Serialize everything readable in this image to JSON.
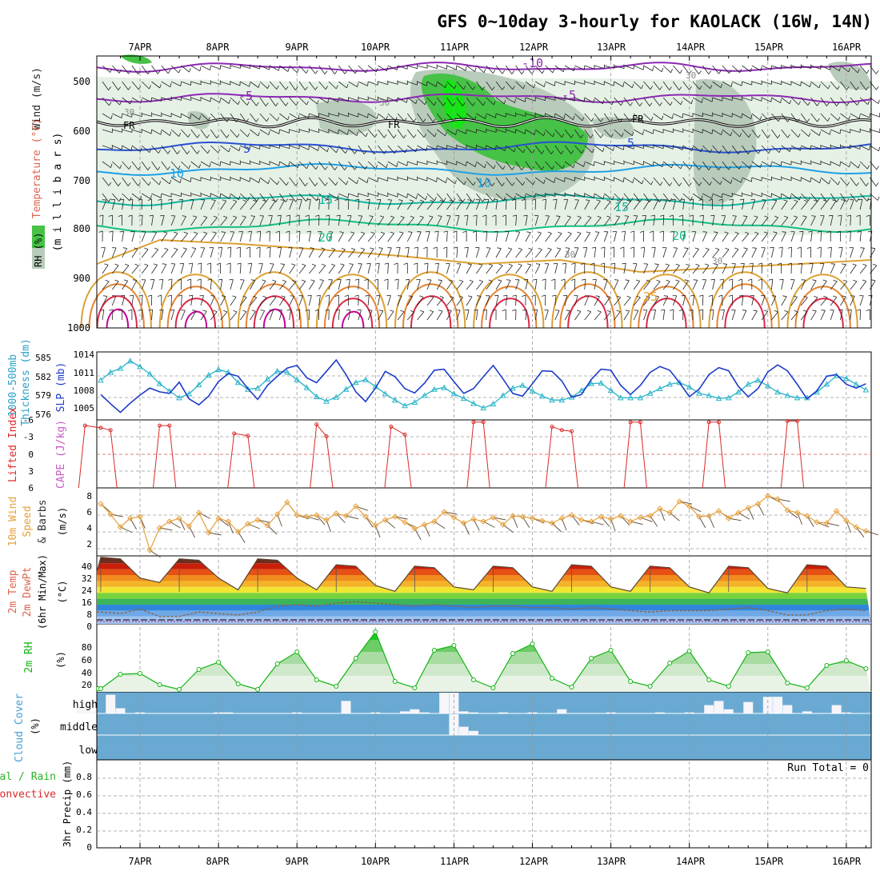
{
  "title": "GFS 0~10day 3-hourly for KAOLACK (16W, 14N)",
  "dates": [
    "7APR",
    "8APR",
    "9APR",
    "10APR",
    "11APR",
    "12APR",
    "13APR",
    "14APR",
    "15APR",
    "16APR"
  ],
  "colors": {
    "frame": "#000000",
    "grid": "#9a9a9a",
    "rh_light": "#e6f1e6",
    "rh_mid": "#b9ccbb",
    "rh_green": "#46c246",
    "rh_bright": "#14e614",
    "temp_purple": "#8c28b4",
    "temp_blue": "#2850d2",
    "temp_cyan": "#1ea0e6",
    "temp_teal": "#14b4a0",
    "temp_green": "#14be82",
    "temp_gold": "#dca032",
    "temp_orange": "#e6822d",
    "temp_red": "#dc2846",
    "temp_magenta": "#c80096",
    "slp": "#1e3cc8",
    "thickness": "#28b4c8",
    "li": "#dc2828",
    "wind": "#e6a03c",
    "rh2m": "#14b414",
    "cloud_bg": "#69a9d2",
    "cloud_bar": "#f5f5fa",
    "precip": "#28b428"
  },
  "panels": {
    "upper": {
      "ylabel": "(m i l l i b a r s)",
      "legend_wind": "Wind (m/s)",
      "legend_temp": "Temperature (°C)",
      "legend_rh": "RH (%)",
      "levels": [
        "500",
        "600",
        "700",
        "800",
        "900",
        "1000"
      ],
      "contour_labels": [
        "-10",
        "-5",
        "-5",
        "FR",
        "FR",
        "FR",
        "5",
        "5",
        "10",
        "10",
        "15",
        "15",
        "20",
        "20",
        "25",
        "30",
        "30",
        "30",
        "30",
        "30"
      ]
    },
    "slp": {
      "ylabel_left": "1000-500mb",
      "ylabel_left2": "Thickness (dm)",
      "ylabel_right": "SLP (mb)",
      "left_ticks": [
        "585",
        "582",
        "579",
        "576"
      ],
      "right_ticks": [
        "1014",
        "1011",
        "1008",
        "1005"
      ]
    },
    "li": {
      "ylabel_li": "Lifted Index",
      "ylabel_cape": "CAPE (J/kg)",
      "ticks": [
        "-6",
        "-3",
        "0",
        "3",
        "6"
      ]
    },
    "wind10m": {
      "ylabel_a": "10m Wind",
      "ylabel_b": "Speed",
      "ylabel_c": "& Barbs",
      "unit": "(m/s)",
      "ticks": [
        "8",
        "6",
        "4",
        "2"
      ]
    },
    "temp2m": {
      "ylabel_a": "2m Temp",
      "ylabel_b": "2m DewPt",
      "ylabel_c": "(6hr Min/Max)",
      "unit": "(°C)",
      "ticks": [
        "40",
        "32",
        "24",
        "16",
        "8",
        "0"
      ]
    },
    "rh2m": {
      "ylabel": "2m RH",
      "unit": "(%)",
      "ticks": [
        "80",
        "60",
        "40",
        "20"
      ]
    },
    "cloud": {
      "ylabel": "Cloud Cover",
      "unit": "(%)",
      "levels": [
        "high",
        "middle",
        "low"
      ]
    },
    "precip": {
      "ylabel_a": "3hr Precip (mm)",
      "ylabel_b": "Total / Rain",
      "ylabel_c": "Convective",
      "run_total": "Run Total = 0",
      "ticks": [
        "0.8",
        "0.6",
        "0.4",
        "0.2",
        "0"
      ]
    }
  },
  "chart_data": [
    {
      "type": "line",
      "title": "1000-500mb Thickness (dm) and SLP (mb)",
      "x": [
        0.5,
        0.625,
        0.75,
        0.875,
        1,
        1.125,
        1.25,
        1.375,
        1.5,
        1.625,
        1.75,
        1.875,
        2,
        2.125,
        2.25,
        2.375,
        2.5,
        2.625,
        2.75,
        2.875,
        3,
        3.125,
        3.25,
        3.375,
        3.5,
        3.625,
        3.75,
        3.875,
        4,
        4.125,
        4.25,
        4.375,
        4.5,
        4.625,
        4.75,
        4.875,
        5,
        5.125,
        5.25,
        5.375,
        5.5,
        5.625,
        5.75,
        5.875,
        6,
        6.125,
        6.25,
        6.375,
        6.5,
        6.625,
        6.75,
        6.875,
        7,
        7.125,
        7.25,
        7.375,
        7.5,
        7.625,
        7.75,
        7.875,
        8,
        8.125,
        8.25,
        8.375,
        8.5,
        8.625,
        8.75,
        8.875,
        9,
        9.125,
        9.25,
        9.375,
        9.5,
        9.625,
        9.75,
        9.875,
        10,
        10.125,
        10.25
      ],
      "series": [
        {
          "name": "1000-500mb Thickness (dm)",
          "axis": "left",
          "values": [
            581.5,
            582.9,
            583.6,
            584.9,
            583.9,
            582.6,
            580.9,
            579.6,
            578.4,
            579.1,
            580.7,
            582.4,
            583.4,
            582.9,
            581.1,
            579.9,
            580.1,
            581.7,
            583.1,
            582.9,
            581.6,
            580.2,
            578.6,
            577.8,
            578.5,
            579.9,
            581.1,
            581.6,
            580.4,
            579.1,
            578.0,
            577.0,
            577.6,
            578.8,
            579.9,
            580.2,
            579.1,
            578.3,
            577.4,
            576.6,
            577.3,
            578.8,
            580.1,
            580.6,
            579.6,
            578.7,
            578.0,
            578.0,
            578.5,
            579.7,
            580.9,
            581.0,
            579.7,
            578.4,
            578.4,
            578.4,
            579.2,
            580.0,
            580.8,
            581.1,
            580.3,
            579.2,
            578.8,
            578.3,
            578.4,
            579.4,
            580.8,
            581.5,
            580.5,
            579.4,
            578.8,
            578.4,
            578.4,
            579.4,
            580.8,
            582.3,
            581.8,
            580.8,
            579.8
          ]
        },
        {
          "name": "SLP (mb)",
          "axis": "right",
          "values": [
            1006.9,
            1005.2,
            1003.6,
            1005.3,
            1006.8,
            1008.1,
            1007.4,
            1007.1,
            1009.2,
            1006.1,
            1005.0,
            1006.6,
            1009.3,
            1010.8,
            1010.3,
            1008.0,
            1006.0,
            1008.6,
            1010.3,
            1011.8,
            1012.3,
            1010.0,
            1009.1,
            1011.2,
            1013.3,
            1010.6,
            1007.4,
            1005.6,
            1008.1,
            1011.2,
            1010.2,
            1008.0,
            1007.2,
            1009.0,
            1011.4,
            1011.6,
            1009.3,
            1007.1,
            1008.0,
            1010.2,
            1012.3,
            1009.8,
            1007.1,
            1006.6,
            1008.9,
            1011.3,
            1011.2,
            1009.4,
            1006.4,
            1006.9,
            1009.7,
            1011.6,
            1011.4,
            1008.6,
            1006.9,
            1008.6,
            1011.0,
            1012.1,
            1011.4,
            1009.1,
            1006.5,
            1007.9,
            1010.6,
            1011.9,
            1011.3,
            1008.4,
            1006.5,
            1008.0,
            1011.1,
            1012.4,
            1011.3,
            1008.8,
            1006.1,
            1007.6,
            1010.3,
            1010.6,
            1008.8,
            1008.1,
            1008.9
          ]
        }
      ],
      "ylim_left": [
        574.5,
        586.5
      ],
      "ylim_right": [
        1002.2,
        1014.8
      ]
    },
    {
      "type": "line",
      "title": "Lifted Index",
      "x": [
        0.3,
        0.5,
        0.625,
        1.25,
        1.375,
        2.2,
        2.375,
        3.25,
        3.375,
        4.2,
        4.375,
        5.25,
        5.375,
        6.25,
        6.375,
        6.5,
        7.25,
        7.375,
        8.25,
        8.375,
        9.25,
        9.375
      ],
      "series": [
        {
          "name": "Lifted Index",
          "values": [
            5.0,
            4.6,
            4.2,
            5.0,
            5.0,
            3.6,
            3.2,
            5.2,
            3.1,
            4.8,
            3.4,
            5.6,
            5.6,
            4.8,
            4.2,
            4.0,
            5.6,
            5.6,
            5.6,
            5.6,
            5.8,
            5.8
          ]
        }
      ],
      "ylim": [
        6,
        -6
      ]
    },
    {
      "type": "line",
      "title": "10m Wind Speed (m/s)",
      "x": [
        0.5,
        0.625,
        0.75,
        0.875,
        1,
        1.125,
        1.25,
        1.375,
        1.5,
        1.625,
        1.75,
        1.875,
        2,
        2.125,
        2.25,
        2.375,
        2.5,
        2.625,
        2.75,
        2.875,
        3,
        3.125,
        3.25,
        3.375,
        3.5,
        3.625,
        3.75,
        3.875,
        4,
        4.125,
        4.25,
        4.375,
        4.5,
        4.625,
        4.75,
        4.875,
        5,
        5.125,
        5.25,
        5.375,
        5.5,
        5.625,
        5.75,
        5.875,
        6,
        6.125,
        6.25,
        6.375,
        6.5,
        6.625,
        6.75,
        6.875,
        7,
        7.125,
        7.25,
        7.375,
        7.5,
        7.625,
        7.75,
        7.875,
        8,
        8.125,
        8.25,
        8.375,
        8.5,
        8.625,
        8.75,
        8.875,
        9,
        9.125,
        9.25,
        9.375,
        9.5,
        9.625,
        9.75,
        9.875,
        10,
        10.125,
        10.25
      ],
      "series": [
        {
          "name": "10m Wind Speed",
          "values": [
            7.0,
            5.7,
            4.1,
            5.2,
            5.4,
            1.2,
            4.0,
            4.8,
            5.2,
            4.2,
            5.9,
            3.4,
            5.2,
            4.8,
            3.5,
            4.5,
            5.0,
            4.3,
            5.7,
            7.2,
            5.6,
            5.4,
            5.6,
            5.0,
            5.8,
            5.5,
            6.7,
            5.4,
            4.3,
            5.0,
            5.4,
            4.7,
            3.9,
            4.4,
            4.8,
            6.0,
            5.3,
            4.6,
            5.1,
            4.8,
            5.3,
            4.4,
            5.5,
            5.4,
            5.2,
            4.9,
            4.6,
            5.2,
            5.6,
            5.0,
            4.8,
            5.4,
            5.1,
            5.5,
            4.8,
            5.3,
            5.5,
            6.4,
            5.9,
            7.3,
            6.7,
            5.4,
            5.5,
            6.1,
            5.2,
            5.9,
            6.5,
            7.0,
            8.0,
            7.6,
            6.2,
            5.9,
            5.5,
            4.7,
            4.6,
            6.1,
            4.9,
            4.1,
            3.6
          ]
        }
      ],
      "ylim": [
        0.5,
        9
      ]
    },
    {
      "type": "area",
      "title": "2m Temp / 2m DewPt (°C)",
      "x": [
        0.25,
        0.5,
        0.75,
        1,
        1.25,
        1.5,
        1.75,
        2,
        2.25,
        2.5,
        2.75,
        3,
        3.25,
        3.5,
        3.75,
        4,
        4.25,
        4.5,
        4.75,
        5,
        5.25,
        5.5,
        5.75,
        6,
        6.25,
        6.5,
        6.75,
        7,
        7.25,
        7.5,
        7.75,
        8,
        8.25,
        8.5,
        8.75,
        9,
        9.25,
        9.5,
        9.75,
        10,
        10.25
      ],
      "series": [
        {
          "name": "2m Temp",
          "values": [
            34,
            44,
            43,
            30,
            27,
            43,
            42,
            30,
            22,
            43,
            42,
            30,
            22,
            39,
            38,
            25,
            21,
            38,
            37,
            24,
            22,
            38,
            37,
            24,
            21,
            39,
            38,
            24,
            21,
            38,
            37,
            24,
            20,
            38,
            37,
            23,
            20,
            39,
            38,
            24,
            23
          ]
        },
        {
          "name": "2m DewPt",
          "values": [
            7,
            7,
            6,
            9,
            4,
            4,
            7,
            6,
            5,
            7,
            11,
            12,
            11,
            13,
            14,
            13,
            12,
            11,
            12,
            11,
            10,
            11,
            11,
            10,
            10,
            9,
            10,
            9,
            8,
            7,
            8,
            8,
            8,
            9,
            10,
            8,
            5,
            5,
            8,
            9,
            8
          ]
        }
      ],
      "ylim": [
        -1,
        45
      ]
    },
    {
      "type": "area",
      "title": "2m RH (%)",
      "x": [
        0.25,
        0.5,
        0.75,
        1,
        1.25,
        1.5,
        1.75,
        2,
        2.25,
        2.5,
        2.75,
        3,
        3.25,
        3.5,
        3.75,
        4,
        4.25,
        4.5,
        4.75,
        5,
        5.25,
        5.5,
        5.75,
        6,
        6.25,
        6.5,
        6.75,
        7,
        7.25,
        7.5,
        7.75,
        8,
        8.25,
        8.5,
        8.75,
        9,
        9.25,
        9.5,
        9.75,
        10,
        10.25
      ],
      "series": [
        {
          "name": "2m RH",
          "values": [
            9,
            9,
            27,
            28,
            14,
            8,
            33,
            42,
            15,
            8,
            40,
            55,
            20,
            12,
            47,
            80,
            18,
            10,
            57,
            63,
            20,
            10,
            53,
            65,
            22,
            11,
            47,
            57,
            18,
            12,
            41,
            56,
            20,
            12,
            54,
            55,
            16,
            10,
            38,
            44,
            34
          ]
        }
      ],
      "ylim": [
        5,
        90
      ]
    },
    {
      "type": "bar",
      "title": "Cloud Cover (%)",
      "levels": [
        "high",
        "middle",
        "low"
      ],
      "x": [
        0.25,
        0.375,
        0.5,
        0.625,
        0.75,
        1,
        2,
        2.125,
        3,
        3.625,
        4,
        4.375,
        4.5,
        4.625,
        4.75,
        4.875,
        5,
        5.125,
        5.25,
        5.625,
        6,
        6.375,
        7,
        7.625,
        8,
        8.25,
        8.375,
        8.5,
        8.75,
        9,
        9.125,
        9.25,
        9.5,
        9.875,
        10
      ],
      "series": [
        {
          "name": "high",
          "values": [
            30,
            10,
            0,
            90,
            25,
            5,
            5,
            5,
            5,
            60,
            5,
            10,
            20,
            5,
            0,
            100,
            100,
            10,
            5,
            5,
            5,
            20,
            5,
            5,
            5,
            40,
            60,
            20,
            55,
            80,
            80,
            40,
            10,
            40,
            5
          ]
        },
        {
          "name": "middle",
          "values": [
            0,
            0,
            0,
            0,
            0,
            0,
            0,
            0,
            0,
            0,
            0,
            0,
            0,
            0,
            0,
            0,
            100,
            40,
            20,
            0,
            0,
            0,
            0,
            0,
            0,
            0,
            0,
            0,
            0,
            0,
            0,
            0,
            0,
            0,
            0
          ]
        },
        {
          "name": "low",
          "values": [
            0,
            0,
            0,
            0,
            0,
            0,
            0,
            0,
            0,
            0,
            0,
            0,
            0,
            0,
            0,
            0,
            0,
            0,
            0,
            0,
            0,
            0,
            0,
            0,
            0,
            0,
            0,
            0,
            0,
            0,
            0,
            0,
            0,
            0,
            0
          ]
        }
      ]
    },
    {
      "type": "bar",
      "title": "3hr Precip (mm)",
      "categories": [
        "7APR",
        "8APR",
        "9APR",
        "10APR",
        "11APR",
        "12APR",
        "13APR",
        "14APR",
        "15APR",
        "16APR"
      ],
      "values": [
        0,
        0,
        0,
        0,
        0,
        0,
        0,
        0,
        0,
        0
      ],
      "ylim": [
        0,
        1
      ]
    }
  ]
}
